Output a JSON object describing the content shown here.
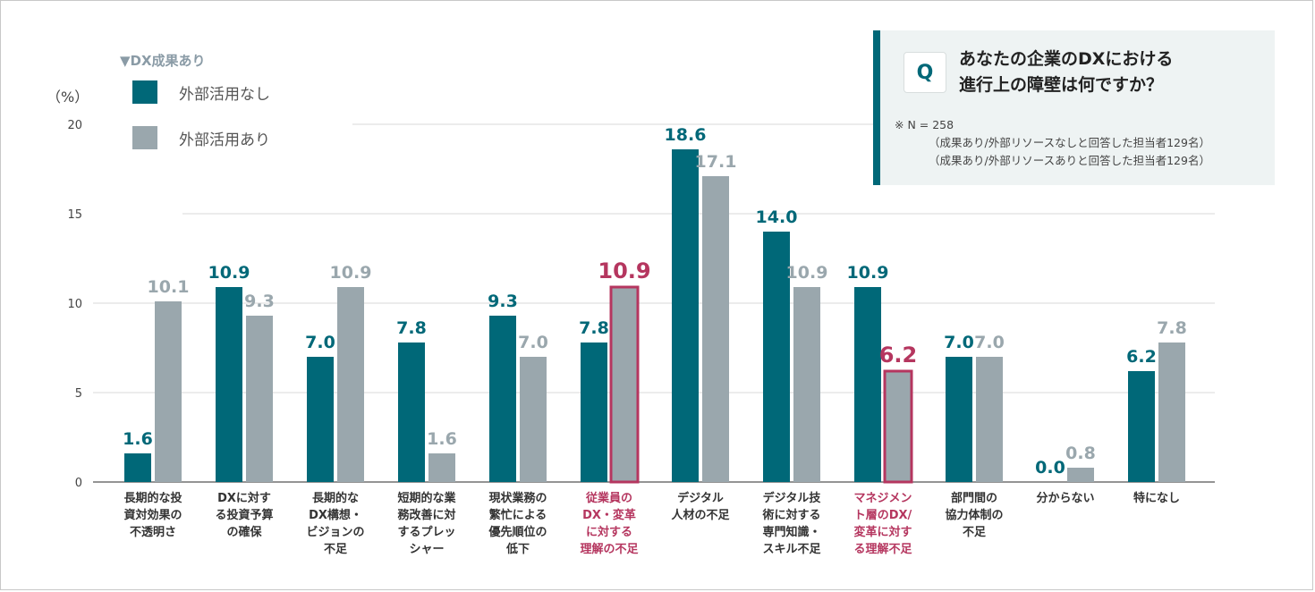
{
  "legend": {
    "title": "▼DX成果あり",
    "items": [
      {
        "label": "外部活用なし",
        "color": "#006878"
      },
      {
        "label": "外部活用あり",
        "color": "#9aa7ad"
      }
    ]
  },
  "unit": "（%）",
  "question": {
    "badge": "Q",
    "line1": "あなたの企業のDXにおける",
    "line2": "進行上の障壁は何ですか？",
    "note1": "※ N = 258",
    "note2": "（成果あり/外部リソースなしと回答した担当者129名）",
    "note3": "（成果あり/外部リソースありと回答した担当者129名）"
  },
  "colors": {
    "series1": "#006878",
    "series2": "#9aa7ad",
    "highlight": "#b5365f",
    "grid": "#d9d9d9",
    "axis": "#555555"
  },
  "chart_data": {
    "type": "bar",
    "title": "",
    "ylabel": "（%）",
    "ylim": [
      0,
      20
    ],
    "yticks": [
      0,
      5,
      10,
      15,
      20
    ],
    "categories": [
      [
        "長期的な投",
        "資対効果の",
        "不透明さ"
      ],
      [
        "DXに対す",
        "る投資予算",
        "の確保"
      ],
      [
        "長期的な",
        "DX構想・",
        "ビジョンの",
        "不足"
      ],
      [
        "短期的な業",
        "務改善に対",
        "するプレッ",
        "シャー"
      ],
      [
        "現状業務の",
        "繁忙による",
        "優先順位の",
        "低下"
      ],
      [
        "従業員の",
        "DX・変革",
        "に対する",
        "理解の不足"
      ],
      [
        "デジタル",
        "人材の不足"
      ],
      [
        "デジタル技",
        "術に対する",
        "専門知識・",
        "スキル不足"
      ],
      [
        "マネジメン",
        "ト層のDX/",
        "変革に対す",
        "る理解不足"
      ],
      [
        "部門間の",
        "協力体制の",
        "不足"
      ],
      [
        "分からない"
      ],
      [
        "特になし"
      ]
    ],
    "highlight_categories": [
      5,
      8
    ],
    "series": [
      {
        "name": "外部活用なし",
        "values": [
          1.6,
          10.9,
          7.0,
          7.8,
          9.3,
          7.8,
          18.6,
          14.0,
          10.9,
          7.0,
          0.0,
          6.2
        ]
      },
      {
        "name": "外部活用あり",
        "values": [
          10.1,
          9.3,
          10.9,
          1.6,
          7.0,
          10.9,
          17.1,
          10.9,
          6.2,
          7.0,
          0.8,
          7.8
        ]
      }
    ]
  }
}
